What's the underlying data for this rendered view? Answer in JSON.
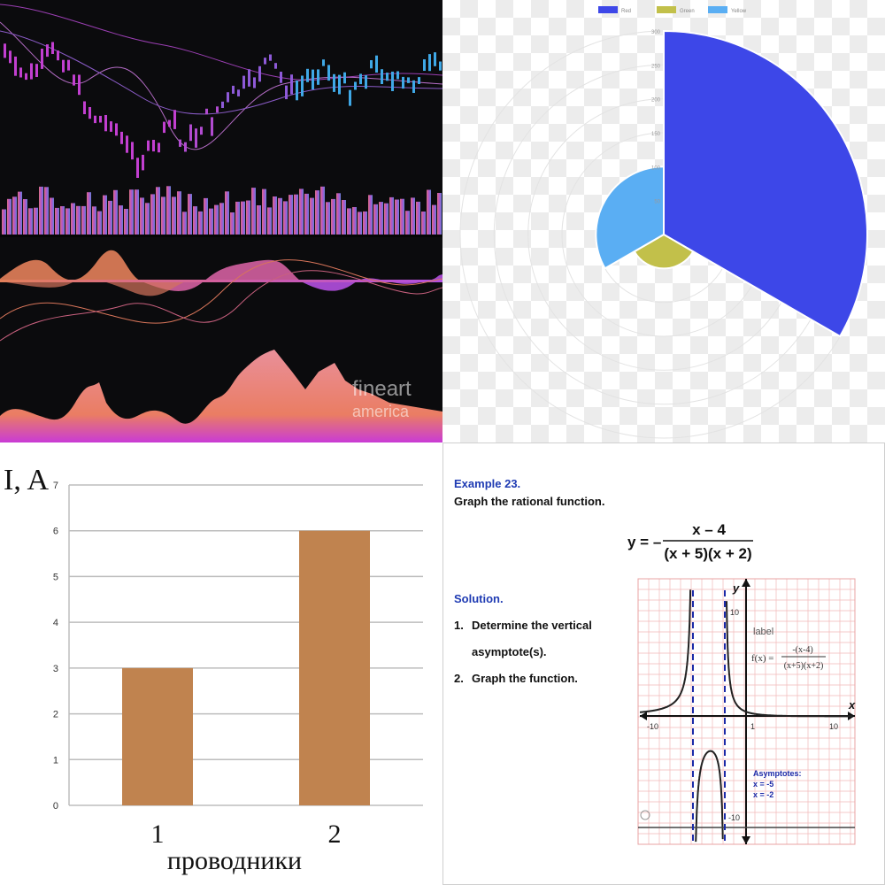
{
  "panels": {
    "stock": {
      "watermark": {
        "line1": "fineart",
        "line2": "america"
      }
    },
    "polar": {
      "chart_data": {
        "type": "polarArea",
        "legend": [
          {
            "label": "Red",
            "color": "#3d47e8"
          },
          {
            "label": "Green",
            "color": "#c2c04a"
          },
          {
            "label": "Yellow",
            "color": "#5aaef3"
          }
        ],
        "values": [
          300,
          50,
          100
        ],
        "labels": [
          "Red",
          "Green",
          "Yellow"
        ],
        "rmax": 300,
        "tick_labels": [
          "300",
          "250",
          "200",
          "150",
          "100",
          "50"
        ],
        "legend_position": "top"
      }
    },
    "bar": {
      "chart_data": {
        "type": "bar",
        "categories": [
          "1",
          "2"
        ],
        "values": [
          3,
          6
        ],
        "ylabel": "I, A",
        "xlabel": "проводники",
        "ylim": [
          0,
          7
        ],
        "yticks": [
          "0",
          "1",
          "2",
          "3",
          "4",
          "5",
          "6",
          "7"
        ],
        "bar_color": "#c0834f",
        "grid": true
      }
    },
    "math": {
      "example_title": "Example 23.",
      "prompt": "Graph the rational function.",
      "equation": {
        "lhs": "y = –",
        "numerator": "x – 4",
        "denominator": "(x + 5)(x + 2)"
      },
      "solution_title": "Solution.",
      "steps": [
        {
          "num": "1.",
          "text": "Determine the vertical"
        },
        {
          "num": "",
          "text": "asymptote(s)."
        },
        {
          "num": "2.",
          "text": "Graph the function."
        }
      ],
      "graph": {
        "x_axis_label": "x",
        "y_axis_label": "y",
        "tick_left": "-10",
        "tick_right": "10",
        "tick_one": "1",
        "tick_top": "10",
        "tick_bottom": "-10",
        "label_word": "label",
        "func_lhs": "f(x) =",
        "func_num": "-(x-4)",
        "func_den": "(x+5)(x+2)",
        "asymptotes_title": "Asymptotes:",
        "asymptote_1": "x = -5",
        "asymptote_2": "x = -2",
        "colors": {
          "curve": "#222222",
          "asymptote": "#1b2aa8",
          "grid": "#f2b8b8"
        }
      }
    }
  }
}
